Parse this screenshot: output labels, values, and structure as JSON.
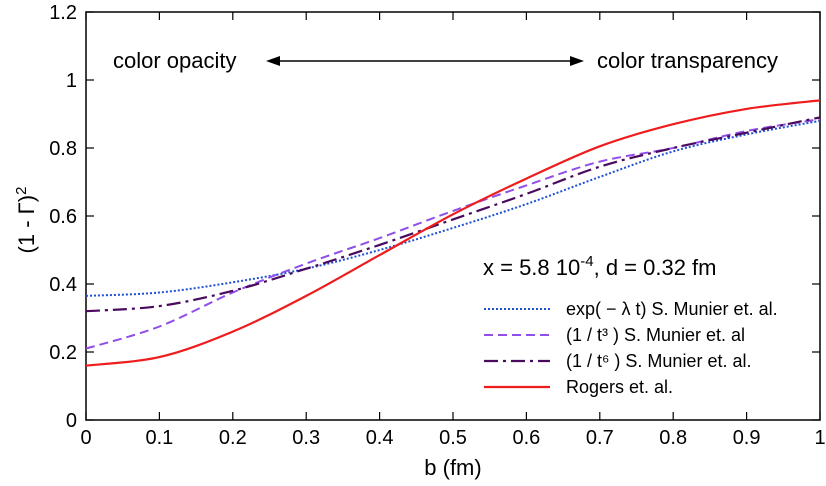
{
  "chart_data": {
    "type": "line",
    "xlabel": "b (fm)",
    "ylabel": "(1 - Γ)²",
    "xlim": [
      0,
      1
    ],
    "ylim": [
      0,
      1.2
    ],
    "xticks": [
      0,
      0.1,
      0.2,
      0.3,
      0.4,
      0.5,
      0.6,
      0.7,
      0.8,
      0.9,
      1
    ],
    "yticks": [
      0,
      0.2,
      0.4,
      0.6,
      0.8,
      1,
      1.2
    ],
    "xtick_labels": [
      "0",
      "0.1",
      "0.2",
      "0.3",
      "0.4",
      "0.5",
      "0.6",
      "0.7",
      "0.8",
      "0.9",
      "1"
    ],
    "ytick_labels": [
      "0",
      "0.2",
      "0.4",
      "0.6",
      "0.8",
      "1",
      "1.2"
    ],
    "annotation_left": "color opacity",
    "annotation_right": "color transparency",
    "parameters_label": "x = 5.8 10",
    "parameters_exp": "-4",
    "parameters_tail": ", d = 0.32 fm",
    "legend_position": "lower-right",
    "x": [
      0,
      0.1,
      0.2,
      0.3,
      0.4,
      0.5,
      0.6,
      0.7,
      0.8,
      0.9,
      1
    ],
    "series": [
      {
        "name": "exp( − λ t)  S. Munier et. al.",
        "style": "dotted",
        "color": "#1f4fd6",
        "values": [
          0.365,
          0.375,
          0.405,
          0.445,
          0.5,
          0.565,
          0.635,
          0.715,
          0.79,
          0.84,
          0.88
        ]
      },
      {
        "name": "(1 / t³ ) S. Munier et. al",
        "style": "dashed",
        "color": "#8f4fe8",
        "values": [
          0.21,
          0.275,
          0.375,
          0.46,
          0.535,
          0.615,
          0.69,
          0.76,
          0.8,
          0.85,
          0.885
        ]
      },
      {
        "name": "(1 / t⁶ ) S. Munier et. al.",
        "style": "dashdot",
        "color": "#4a0a5e",
        "values": [
          0.32,
          0.335,
          0.38,
          0.445,
          0.515,
          0.59,
          0.665,
          0.745,
          0.8,
          0.845,
          0.89
        ]
      },
      {
        "name": "Rogers et. al.",
        "style": "solid",
        "color": "#ee1c1c",
        "values": [
          0.16,
          0.185,
          0.26,
          0.365,
          0.485,
          0.605,
          0.71,
          0.805,
          0.87,
          0.915,
          0.94
        ]
      }
    ]
  }
}
